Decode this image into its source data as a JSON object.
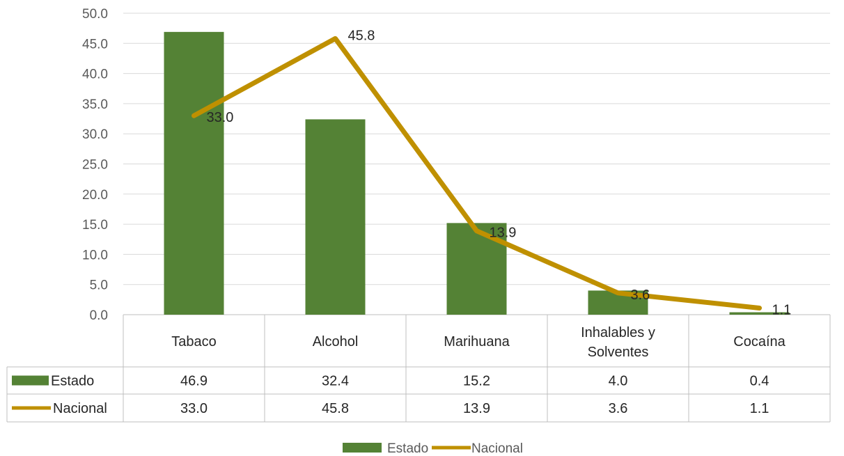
{
  "chart_data": {
    "type": "bar",
    "categories": [
      "Tabaco",
      "Alcohol",
      "Marihuana",
      "Inhalables y Solventes",
      "Cocaína"
    ],
    "category_lines": [
      [
        "Tabaco"
      ],
      [
        "Alcohol"
      ],
      [
        "Marihuana"
      ],
      [
        "Inhalables y",
        "Solventes"
      ],
      [
        "Cocaína"
      ]
    ],
    "series": [
      {
        "name": "Estado",
        "type": "bar",
        "color": "#548235",
        "values": [
          46.9,
          32.4,
          15.2,
          4.0,
          0.4
        ],
        "display": [
          "46.9",
          "32.4",
          "15.2",
          "4.0",
          "0.4"
        ]
      },
      {
        "name": "Nacional",
        "type": "line",
        "color": "#BF9000",
        "values": [
          33.0,
          45.8,
          13.9,
          3.6,
          1.1
        ],
        "display": [
          "33.0",
          "45.8",
          "13.9",
          "3.6",
          "1.1"
        ]
      }
    ],
    "ylim": [
      0,
      50
    ],
    "yticks": [
      "0.0",
      "5.0",
      "10.0",
      "15.0",
      "20.0",
      "25.0",
      "30.0",
      "35.0",
      "40.0",
      "45.0",
      "50.0"
    ],
    "grid": true,
    "data_table": true,
    "legend_position": "bottom"
  }
}
